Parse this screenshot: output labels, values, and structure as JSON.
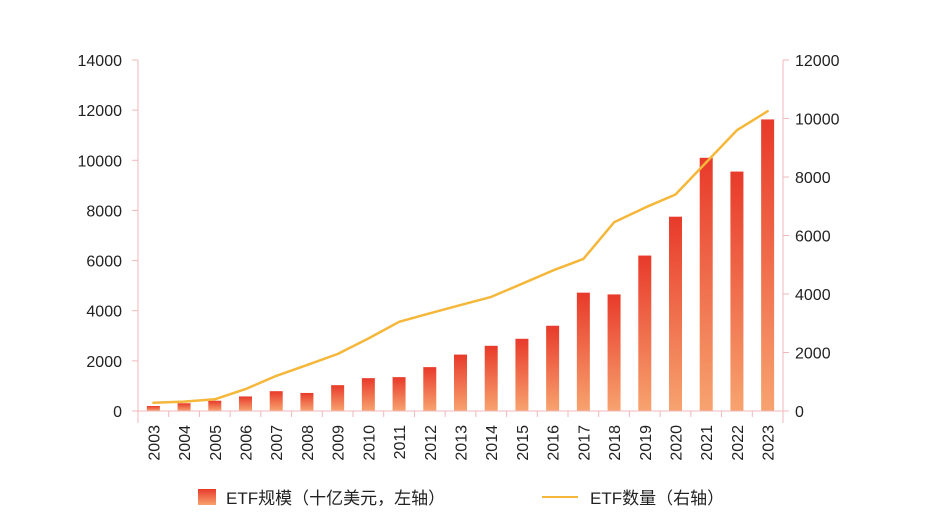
{
  "chart_data": {
    "type": "bar+line",
    "title": "",
    "categories": [
      "2003",
      "2004",
      "2005",
      "2006",
      "2007",
      "2008",
      "2009",
      "2010",
      "2011",
      "2012",
      "2013",
      "2014",
      "2015",
      "2016",
      "2017",
      "2018",
      "2019",
      "2020",
      "2021",
      "2022",
      "2023"
    ],
    "series": [
      {
        "name": "ETF规模（十亿美元，左轴）",
        "type": "bar",
        "axis": "left",
        "values": [
          200,
          310,
          410,
          580,
          790,
          720,
          1030,
          1310,
          1350,
          1750,
          2250,
          2600,
          2880,
          3400,
          4720,
          4650,
          6200,
          7750,
          10100,
          9550,
          11630
        ]
      },
      {
        "name": "ETF数量（右轴）",
        "type": "line",
        "axis": "right",
        "values": [
          280,
          320,
          400,
          750,
          1200,
          1570,
          1950,
          2480,
          3050,
          3340,
          3620,
          3900,
          4350,
          4800,
          5200,
          6450,
          6950,
          7400,
          8500,
          9600,
          10250
        ]
      }
    ],
    "y_left": {
      "min": 0,
      "max": 14000,
      "ticks": [
        0,
        2000,
        4000,
        6000,
        8000,
        10000,
        12000,
        14000
      ]
    },
    "y_right": {
      "min": 0,
      "max": 12000,
      "ticks": [
        0,
        2000,
        4000,
        6000,
        8000,
        10000,
        12000
      ]
    },
    "colors": {
      "bar_top": "#e83a2a",
      "bar_bottom": "#f7a36f",
      "line": "#f5b73a",
      "axis": "#f2b8bb"
    }
  },
  "legend": {
    "bar_label": "ETF规模（十亿美元，左轴）",
    "line_label": "ETF数量（右轴）"
  }
}
